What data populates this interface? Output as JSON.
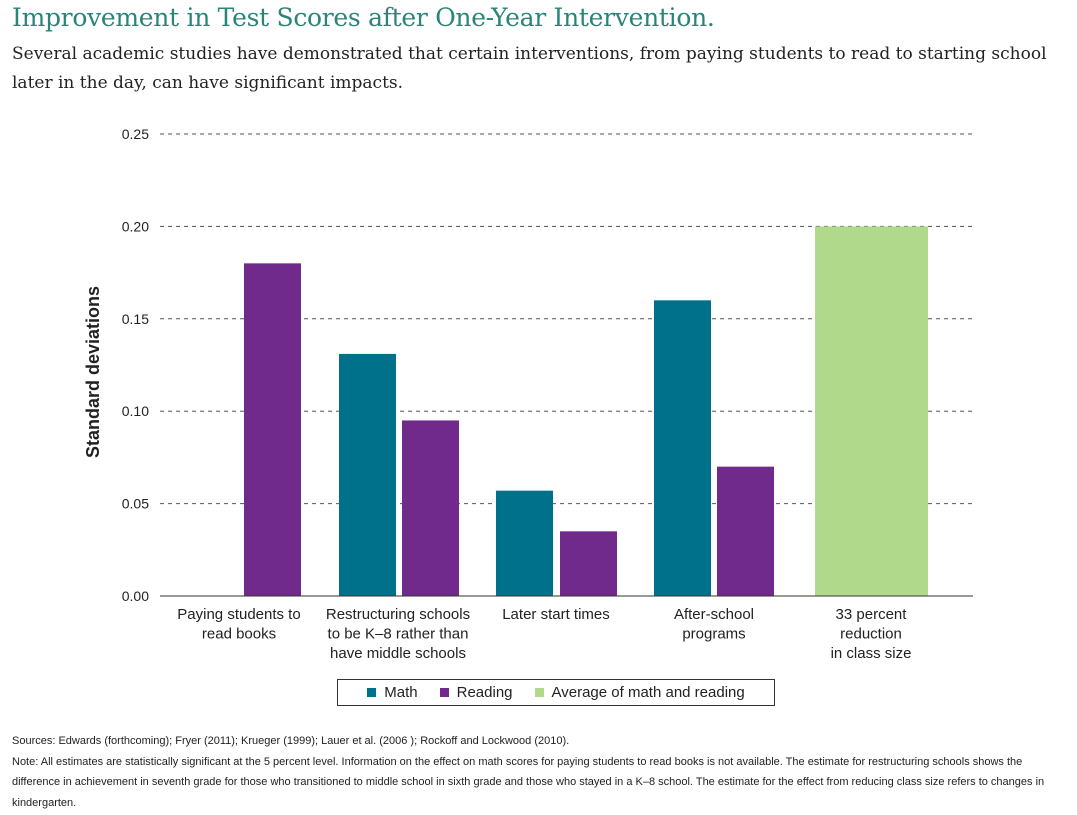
{
  "header": {
    "title": "Improvement in Test Scores after One-Year Intervention.",
    "subtitle": "Several academic studies have demonstrated that certain interventions, from paying students to read to starting school later in the day, can have significant impacts."
  },
  "colors": {
    "math": "#00718a",
    "reading": "#6f2a8c",
    "average": "#b1d98b",
    "title": "#2a8478",
    "gridline": "#555555"
  },
  "chart_data": {
    "type": "bar",
    "ylabel": "Standard deviations",
    "xlabel": "",
    "ylim": [
      0,
      0.25
    ],
    "yticks": [
      "0.00",
      "0.05",
      "0.10",
      "0.15",
      "0.20",
      "0.25"
    ],
    "grid": true,
    "legend_position": "bottom-center",
    "categories": [
      [
        "Paying students to",
        "read books"
      ],
      [
        "Restructuring schools",
        "to be K–8 rather than",
        "have middle schools"
      ],
      [
        "Later start times"
      ],
      [
        "After-school",
        "programs"
      ],
      [
        "33 percent",
        "reduction",
        "in class size"
      ]
    ],
    "series": [
      {
        "name": "Math",
        "values": [
          null,
          0.131,
          0.057,
          0.16,
          null
        ]
      },
      {
        "name": "Reading",
        "values": [
          0.18,
          0.095,
          0.035,
          0.07,
          null
        ]
      },
      {
        "name": "Average of math and reading",
        "values": [
          null,
          null,
          null,
          null,
          0.2
        ]
      }
    ]
  },
  "legend": {
    "items": [
      {
        "label": "Math",
        "color": "#00718a"
      },
      {
        "label": "Reading",
        "color": "#6f2a8c"
      },
      {
        "label": "Average of math and reading",
        "color": "#b1d98b"
      }
    ]
  },
  "footer": {
    "sources": "Sources: Edwards (forthcoming); Fryer (2011); Krueger (1999); Lauer et al. (2006 ); Rockoff and Lockwood (2010).",
    "note": "Note: All estimates are statistically significant at the 5 percent level. Information on the effect on math scores for paying students to read books is not available. The estimate for restructuring schools shows the difference in achievement in seventh grade for those who transitioned to middle school in sixth grade and those who stayed in a K–8 school. The estimate for the effect from reducing class size refers to changes in kindergarten."
  }
}
